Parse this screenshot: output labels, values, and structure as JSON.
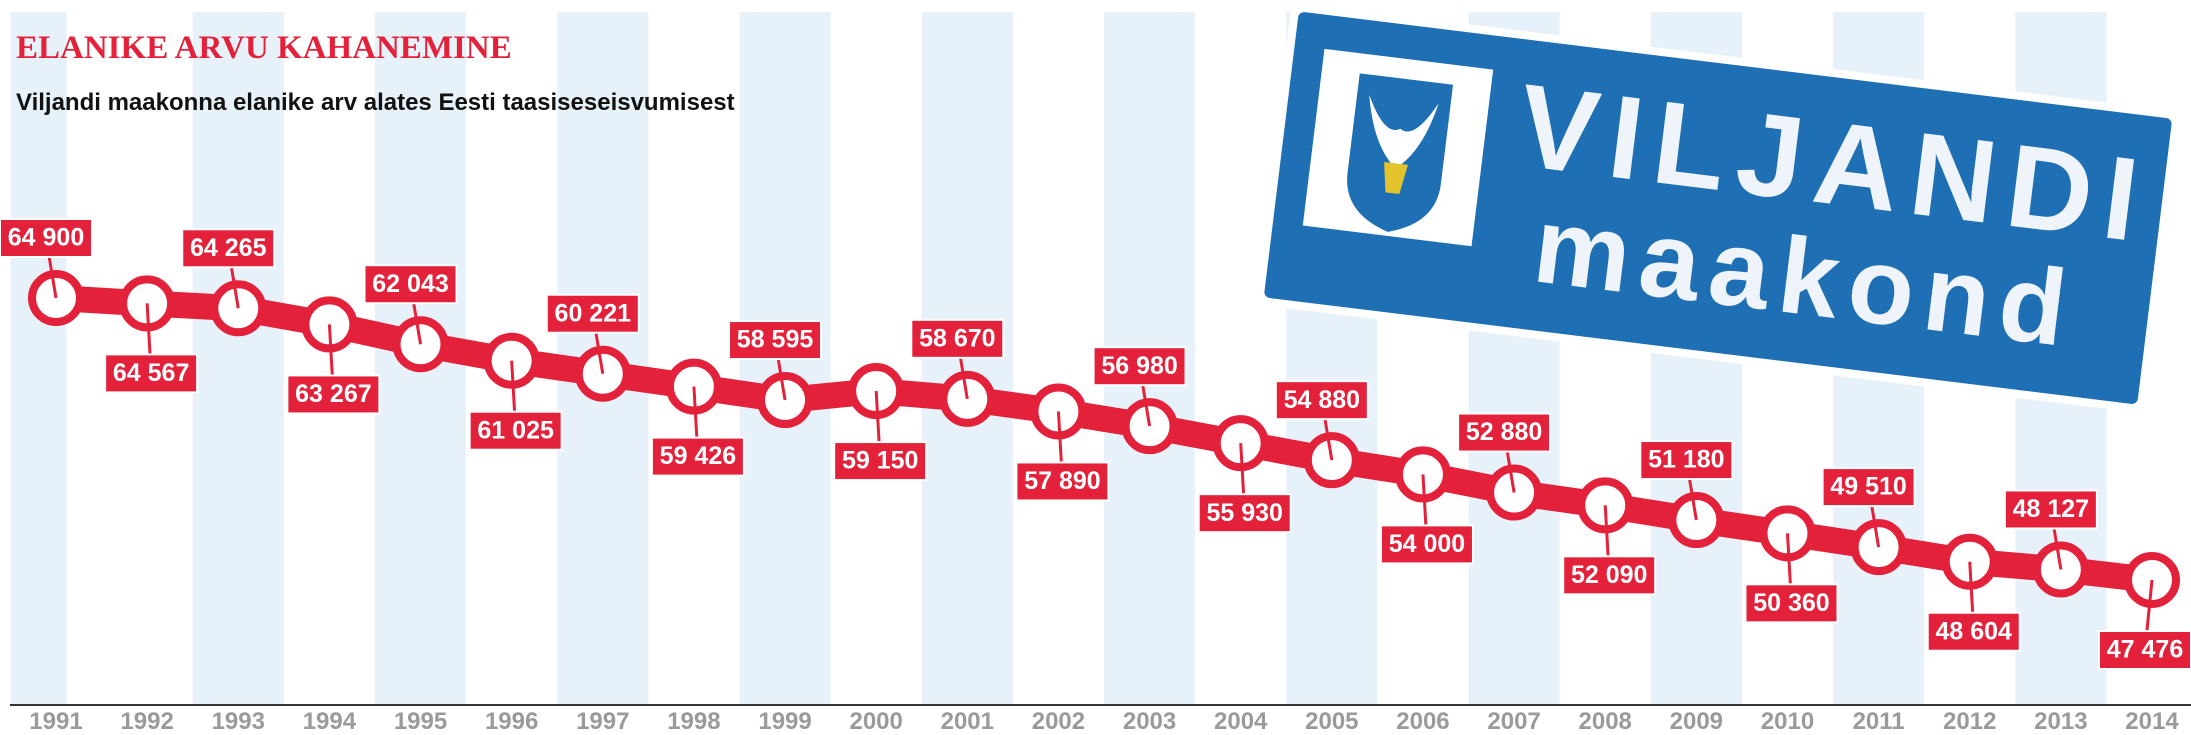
{
  "chart_data": {
    "type": "line",
    "title": "ELANIKE ARVU KAHANEMINE",
    "subtitle": "Viljandi maakonna elanike arv alates Eesti taasiseseisvumisest",
    "categories": [
      "1991",
      "1992",
      "1993",
      "1994",
      "1995",
      "1996",
      "1997",
      "1998",
      "1999",
      "2000",
      "2001",
      "2002",
      "2003",
      "2004",
      "2005",
      "2006",
      "2007",
      "2008",
      "2009",
      "2010",
      "2011",
      "2012",
      "2013",
      "2014"
    ],
    "values": [
      64900,
      64567,
      64265,
      63267,
      62043,
      61025,
      60221,
      59426,
      58595,
      59150,
      58670,
      57890,
      56980,
      55930,
      54880,
      54000,
      52880,
      52090,
      51180,
      50360,
      49510,
      48604,
      48127,
      47476
    ],
    "value_labels": [
      "64 900",
      "64 567",
      "64 265",
      "63 267",
      "62 043",
      "61 025",
      "60 221",
      "59 426",
      "58 595",
      "59 150",
      "58 670",
      "57 890",
      "56 980",
      "55 930",
      "54 880",
      "54 000",
      "52 880",
      "52 090",
      "51 180",
      "50 360",
      "49 510",
      "48 604",
      "48 127",
      "47 476"
    ],
    "color": "#e4213a"
  },
  "sign": {
    "line1": "VILJANDI",
    "line2": "maakond"
  }
}
